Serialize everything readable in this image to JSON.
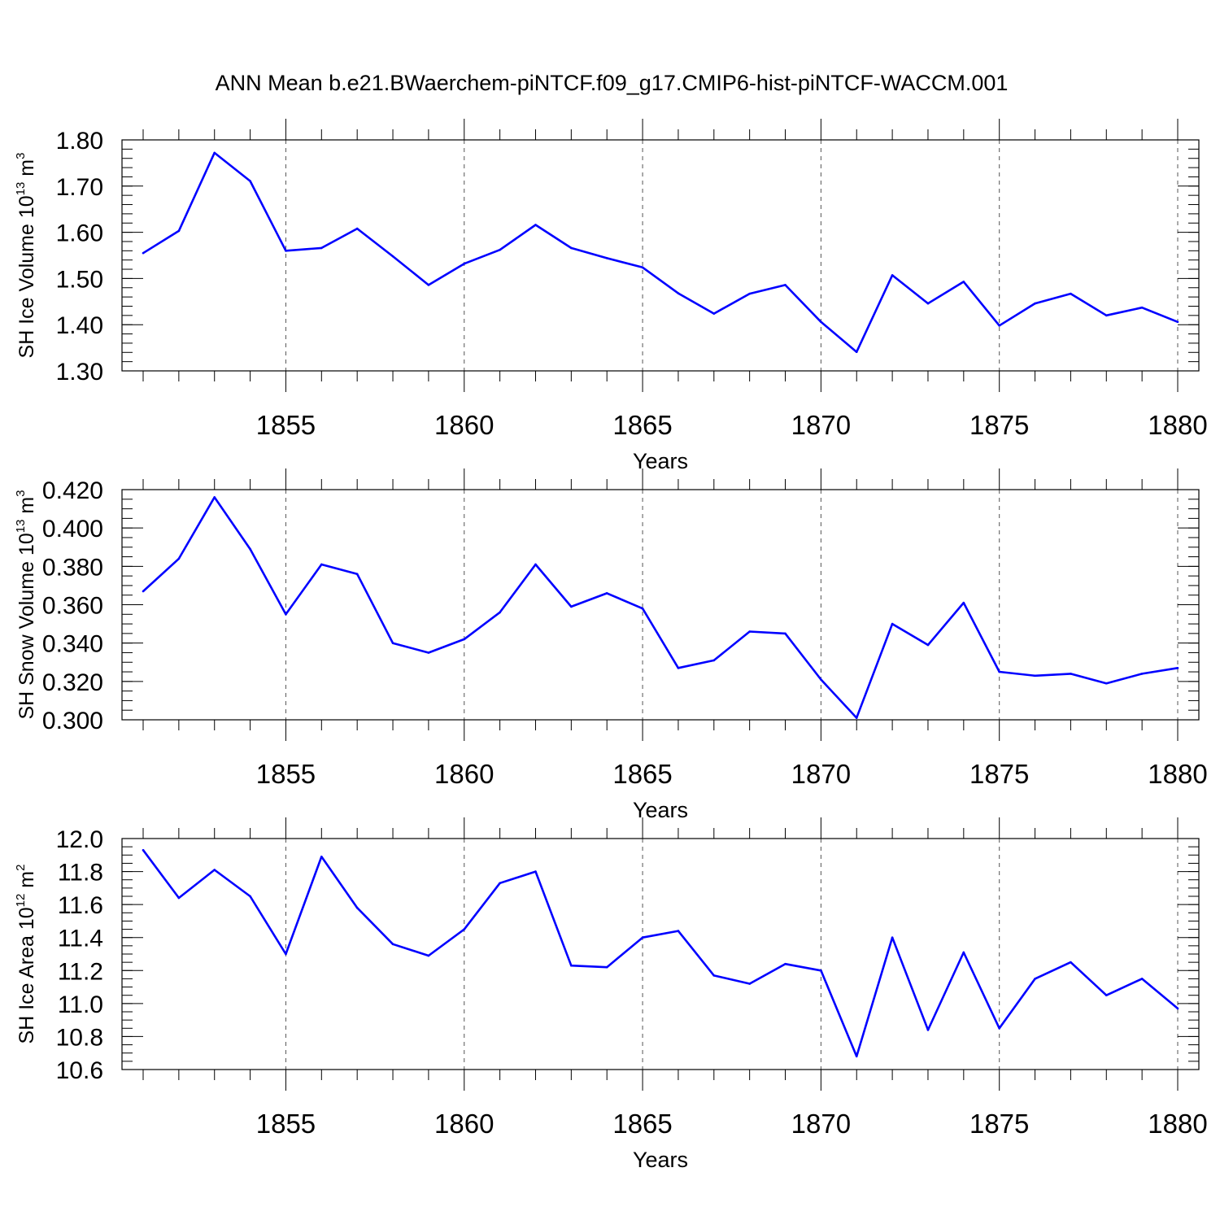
{
  "title": "ANN Mean b.e21.BWaerchem-piNTCF.f09_g17.CMIP6-hist-piNTCF-WACCM.001",
  "colors": {
    "line": "#0000ff",
    "axis": "#000000",
    "grid": "#555555"
  },
  "chart_data": [
    {
      "type": "line",
      "ylabel": {
        "main": "SH Ice Volume 10",
        "sup": "13",
        "unit": " m",
        "unit_sup": "3"
      },
      "xlabel": "Years",
      "xlim": [
        1851,
        1880
      ],
      "ylim": [
        1.3,
        1.8
      ],
      "ytick_values": [
        1.3,
        1.4,
        1.5,
        1.6,
        1.7,
        1.8
      ],
      "ytick_labels": [
        "1.30",
        "1.40",
        "1.50",
        "1.60",
        "1.70",
        "1.80"
      ],
      "ytick_minor_step": 0.02,
      "xtick_values": [
        1855,
        1860,
        1865,
        1870,
        1875,
        1880
      ],
      "xtick_labels": [
        "1855",
        "1860",
        "1865",
        "1870",
        "1875",
        "1880"
      ],
      "grid": "vertical-dashed",
      "series": [
        {
          "x": [
            1851,
            1852,
            1853,
            1854,
            1855,
            1856,
            1857,
            1858,
            1859,
            1860,
            1861,
            1862,
            1863,
            1864,
            1865,
            1866,
            1867,
            1868,
            1869,
            1870,
            1871,
            1872,
            1873,
            1874,
            1875,
            1876,
            1877,
            1878,
            1879,
            1880
          ],
          "values": [
            1.555,
            1.603,
            1.772,
            1.711,
            1.56,
            1.566,
            1.608,
            1.548,
            1.486,
            1.532,
            1.562,
            1.616,
            1.566,
            1.544,
            1.524,
            1.468,
            1.424,
            1.467,
            1.486,
            1.406,
            1.341,
            1.507,
            1.446,
            1.493,
            1.398,
            1.446,
            1.467,
            1.42,
            1.437,
            1.406
          ]
        }
      ]
    },
    {
      "type": "line",
      "ylabel": {
        "main": "SH Snow Volume 10",
        "sup": "13",
        "unit": " m",
        "unit_sup": "3"
      },
      "xlabel": "Years",
      "xlim": [
        1851,
        1880
      ],
      "ylim": [
        0.3,
        0.42
      ],
      "ytick_values": [
        0.3,
        0.32,
        0.34,
        0.36,
        0.38,
        0.4,
        0.42
      ],
      "ytick_labels": [
        "0.300",
        "0.320",
        "0.340",
        "0.360",
        "0.380",
        "0.400",
        "0.420"
      ],
      "ytick_minor_step": 0.005,
      "xtick_values": [
        1855,
        1860,
        1865,
        1870,
        1875,
        1880
      ],
      "xtick_labels": [
        "1855",
        "1860",
        "1865",
        "1870",
        "1875",
        "1880"
      ],
      "grid": "vertical-dashed",
      "series": [
        {
          "x": [
            1851,
            1852,
            1853,
            1854,
            1855,
            1856,
            1857,
            1858,
            1859,
            1860,
            1861,
            1862,
            1863,
            1864,
            1865,
            1866,
            1867,
            1868,
            1869,
            1870,
            1871,
            1872,
            1873,
            1874,
            1875,
            1876,
            1877,
            1878,
            1879,
            1880
          ],
          "values": [
            0.367,
            0.384,
            0.416,
            0.389,
            0.355,
            0.381,
            0.376,
            0.34,
            0.335,
            0.342,
            0.356,
            0.381,
            0.359,
            0.366,
            0.358,
            0.327,
            0.331,
            0.346,
            0.345,
            0.321,
            0.301,
            0.35,
            0.339,
            0.361,
            0.325,
            0.323,
            0.324,
            0.319,
            0.324,
            0.327
          ]
        }
      ]
    },
    {
      "type": "line",
      "ylabel": {
        "main": "SH Ice Area 10",
        "sup": "12",
        "unit": " m",
        "unit_sup": "2"
      },
      "xlabel": "Years",
      "xlim": [
        1851,
        1880
      ],
      "ylim": [
        10.6,
        12.0
      ],
      "ytick_values": [
        10.6,
        10.8,
        11.0,
        11.2,
        11.4,
        11.6,
        11.8,
        12.0
      ],
      "ytick_labels": [
        "10.6",
        "10.8",
        "11.0",
        "11.2",
        "11.4",
        "11.6",
        "11.8",
        "12.0"
      ],
      "ytick_minor_step": 0.05,
      "xtick_values": [
        1855,
        1860,
        1865,
        1870,
        1875,
        1880
      ],
      "xtick_labels": [
        "1855",
        "1860",
        "1865",
        "1870",
        "1875",
        "1880"
      ],
      "grid": "vertical-dashed",
      "series": [
        {
          "x": [
            1851,
            1852,
            1853,
            1854,
            1855,
            1856,
            1857,
            1858,
            1859,
            1860,
            1861,
            1862,
            1863,
            1864,
            1865,
            1866,
            1867,
            1868,
            1869,
            1870,
            1871,
            1872,
            1873,
            1874,
            1875,
            1876,
            1877,
            1878,
            1879,
            1880
          ],
          "values": [
            11.93,
            11.64,
            11.81,
            11.65,
            11.3,
            11.89,
            11.58,
            11.36,
            11.29,
            11.45,
            11.73,
            11.8,
            11.23,
            11.22,
            11.4,
            11.44,
            11.17,
            11.12,
            11.24,
            11.2,
            10.68,
            11.4,
            10.84,
            11.31,
            10.85,
            11.15,
            11.25,
            11.05,
            11.15,
            10.97
          ]
        }
      ]
    }
  ]
}
